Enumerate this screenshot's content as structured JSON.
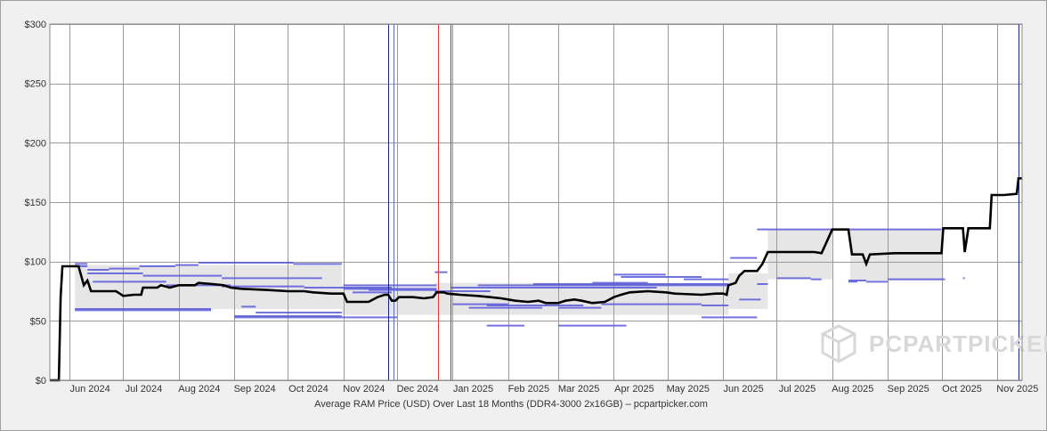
{
  "chart_data": {
    "type": "line",
    "xlabel": "Average RAM Price (USD) Over Last 18 Months (DDR4-3000 2x16GB) – pcpartpicker.com",
    "ylabel": "",
    "ylim": [
      0,
      300
    ],
    "y_ticks": [
      {
        "value": 0,
        "label": "$0"
      },
      {
        "value": 50,
        "label": "$50"
      },
      {
        "value": 100,
        "label": "$100"
      },
      {
        "value": 150,
        "label": "$150"
      },
      {
        "value": 200,
        "label": "$200"
      },
      {
        "value": 250,
        "label": "$250"
      },
      {
        "value": 300,
        "label": "$300"
      }
    ],
    "x_domain": [
      "2024-05-21",
      "2025-11-15"
    ],
    "x_ticks": [
      {
        "date": "2024-06-01",
        "label": "Jun 2024"
      },
      {
        "date": "2024-07-01",
        "label": "Jul 2024"
      },
      {
        "date": "2024-08-01",
        "label": "Aug 2024"
      },
      {
        "date": "2024-09-01",
        "label": "Sep 2024"
      },
      {
        "date": "2024-10-01",
        "label": "Oct 2024"
      },
      {
        "date": "2024-11-01",
        "label": "Nov 2024"
      },
      {
        "date": "2024-12-01",
        "label": "Dec 2024"
      },
      {
        "date": "2025-01-01",
        "label": "Jan 2025"
      },
      {
        "date": "2025-02-01",
        "label": "Feb 2025"
      },
      {
        "date": "2025-03-01",
        "label": "Mar 2025"
      },
      {
        "date": "2025-04-01",
        "label": "Apr 2025"
      },
      {
        "date": "2025-05-01",
        "label": "May 2025"
      },
      {
        "date": "2025-06-01",
        "label": "Jun 2025"
      },
      {
        "date": "2025-07-01",
        "label": "Jul 2025"
      },
      {
        "date": "2025-08-01",
        "label": "Aug 2025"
      },
      {
        "date": "2025-09-01",
        "label": "Sep 2025"
      },
      {
        "date": "2025-10-01",
        "label": "Oct 2025"
      },
      {
        "date": "2025-11-01",
        "label": "Nov 2025"
      }
    ],
    "markers": [
      {
        "date": "2024-11-26",
        "color": "#1a237e"
      },
      {
        "date": "2024-11-29",
        "color": "#5c6bc0"
      },
      {
        "date": "2024-12-24",
        "color": "#e53935"
      },
      {
        "date": "2024-12-31",
        "color": "#555555"
      },
      {
        "date": "2025-11-13",
        "color": "#1a237e"
      }
    ],
    "series": [
      {
        "color": "#000000",
        "points": [
          [
            "2024-05-21",
            0
          ],
          [
            "2024-05-26",
            0
          ],
          [
            "2024-05-27",
            70
          ],
          [
            "2024-05-28",
            96
          ],
          [
            "2024-06-06",
            96
          ],
          [
            "2024-06-09",
            80
          ],
          [
            "2024-06-11",
            84
          ],
          [
            "2024-06-13",
            75
          ],
          [
            "2024-06-17",
            75
          ],
          [
            "2024-06-20",
            75
          ],
          [
            "2024-06-27",
            75
          ],
          [
            "2024-07-01",
            71
          ],
          [
            "2024-07-07",
            72
          ],
          [
            "2024-07-11",
            72
          ],
          [
            "2024-07-12",
            78
          ],
          [
            "2024-07-20",
            78
          ],
          [
            "2024-07-22",
            80
          ],
          [
            "2024-07-27",
            78
          ],
          [
            "2024-08-01",
            80
          ],
          [
            "2024-08-10",
            80
          ],
          [
            "2024-08-12",
            82
          ],
          [
            "2024-08-20",
            81
          ],
          [
            "2024-08-26",
            80
          ],
          [
            "2024-08-30",
            78
          ],
          [
            "2024-09-05",
            77
          ],
          [
            "2024-09-20",
            76
          ],
          [
            "2024-10-01",
            75
          ],
          [
            "2024-10-10",
            75
          ],
          [
            "2024-10-15",
            74
          ],
          [
            "2024-10-25",
            73
          ],
          [
            "2024-11-01",
            73
          ],
          [
            "2024-11-03",
            66
          ],
          [
            "2024-11-15",
            66
          ],
          [
            "2024-11-20",
            70
          ],
          [
            "2024-11-24",
            72
          ],
          [
            "2024-11-26",
            72
          ],
          [
            "2024-11-28",
            67
          ],
          [
            "2024-11-30",
            67
          ],
          [
            "2024-12-02",
            70
          ],
          [
            "2024-12-10",
            70
          ],
          [
            "2024-12-16",
            69
          ],
          [
            "2024-12-21",
            70
          ],
          [
            "2024-12-23",
            74
          ],
          [
            "2024-12-27",
            74
          ],
          [
            "2024-12-29",
            73
          ],
          [
            "2025-01-05",
            72
          ],
          [
            "2025-01-15",
            71
          ],
          [
            "2025-01-22",
            70
          ],
          [
            "2025-01-28",
            69
          ],
          [
            "2025-02-05",
            67
          ],
          [
            "2025-02-12",
            66
          ],
          [
            "2025-02-18",
            67
          ],
          [
            "2025-02-22",
            65
          ],
          [
            "2025-03-01",
            65
          ],
          [
            "2025-03-05",
            67
          ],
          [
            "2025-03-10",
            68
          ],
          [
            "2025-03-14",
            67
          ],
          [
            "2025-03-20",
            65
          ],
          [
            "2025-03-27",
            66
          ],
          [
            "2025-04-01",
            70
          ],
          [
            "2025-04-05",
            72
          ],
          [
            "2025-04-10",
            74
          ],
          [
            "2025-04-20",
            75
          ],
          [
            "2025-04-30",
            74
          ],
          [
            "2025-05-05",
            73
          ],
          [
            "2025-05-20",
            72
          ],
          [
            "2025-05-28",
            73
          ],
          [
            "2025-06-01",
            73
          ],
          [
            "2025-06-03",
            72
          ],
          [
            "2025-06-04",
            80
          ],
          [
            "2025-06-08",
            82
          ],
          [
            "2025-06-10",
            88
          ],
          [
            "2025-06-13",
            92
          ],
          [
            "2025-06-20",
            92
          ],
          [
            "2025-06-23",
            98
          ],
          [
            "2025-06-26",
            108
          ],
          [
            "2025-07-10",
            108
          ],
          [
            "2025-07-22",
            108
          ],
          [
            "2025-07-26",
            107
          ],
          [
            "2025-08-01",
            127
          ],
          [
            "2025-08-10",
            127
          ],
          [
            "2025-08-12",
            106
          ],
          [
            "2025-08-18",
            106
          ],
          [
            "2025-08-20",
            98
          ],
          [
            "2025-08-22",
            106
          ],
          [
            "2025-09-05",
            107
          ],
          [
            "2025-10-01",
            107
          ],
          [
            "2025-10-02",
            128
          ],
          [
            "2025-10-13",
            128
          ],
          [
            "2025-10-14",
            108
          ],
          [
            "2025-10-16",
            128
          ],
          [
            "2025-10-28",
            128
          ],
          [
            "2025-10-29",
            156
          ],
          [
            "2025-11-05",
            156
          ],
          [
            "2025-11-12",
            157
          ],
          [
            "2025-11-13",
            170
          ],
          [
            "2025-11-15",
            170
          ]
        ]
      }
    ],
    "range_band": {
      "color": "#e6e6e6",
      "segments": [
        [
          "2024-06-04",
          "2024-10-31",
          60,
          97
        ],
        [
          "2024-10-31",
          "2024-12-22",
          55,
          80
        ],
        [
          "2024-12-22",
          "2025-06-04",
          55,
          82
        ],
        [
          "2025-06-04",
          "2025-06-26",
          60,
          90
        ],
        [
          "2025-06-26",
          "2025-08-01",
          85,
          127
        ],
        [
          "2025-08-11",
          "2025-10-01",
          84,
          127
        ],
        [
          "2025-10-01",
          "2025-10-02",
          85,
          128
        ]
      ]
    },
    "vendor_color": "#5b5bdb",
    "vendor_segments": [
      [
        "2024-06-04",
        "2024-06-11",
        98
      ],
      [
        "2024-06-04",
        "2024-06-11",
        96
      ],
      [
        "2024-06-11",
        "2024-06-23",
        93
      ],
      [
        "2024-06-23",
        "2024-07-10",
        94
      ],
      [
        "2024-07-10",
        "2024-07-30",
        96
      ],
      [
        "2024-07-30",
        "2024-08-12",
        97
      ],
      [
        "2024-08-12",
        "2024-10-04",
        99
      ],
      [
        "2024-10-04",
        "2024-10-31",
        98
      ],
      [
        "2024-06-11",
        "2024-07-12",
        90
      ],
      [
        "2024-07-12",
        "2024-08-25",
        88
      ],
      [
        "2024-08-25",
        "2024-10-20",
        86
      ],
      [
        "2024-06-14",
        "2024-07-25",
        83
      ],
      [
        "2024-07-25",
        "2024-08-30",
        80
      ],
      [
        "2024-08-25",
        "2024-10-10",
        79
      ],
      [
        "2024-10-10",
        "2024-11-28",
        78
      ],
      [
        "2024-06-04",
        "2024-08-19",
        60
      ],
      [
        "2024-06-04",
        "2024-08-19",
        59
      ],
      [
        "2024-09-05",
        "2024-09-13",
        62
      ],
      [
        "2024-09-13",
        "2024-10-31",
        57
      ],
      [
        "2024-09-01",
        "2024-10-31",
        54
      ],
      [
        "2024-09-01",
        "2024-12-01",
        53
      ],
      [
        "2024-11-01",
        "2024-12-23",
        80
      ],
      [
        "2024-11-01",
        "2024-12-23",
        77
      ],
      [
        "2024-11-15",
        "2024-12-23",
        76
      ],
      [
        "2024-11-06",
        "2024-11-28",
        74
      ],
      [
        "2024-12-22",
        "2024-12-29",
        91
      ],
      [
        "2024-12-22",
        "2025-01-22",
        75
      ],
      [
        "2024-12-31",
        "2025-04-25",
        78
      ],
      [
        "2025-01-15",
        "2025-06-04",
        80
      ],
      [
        "2025-02-15",
        "2025-06-04",
        81
      ],
      [
        "2025-03-20",
        "2025-04-20",
        82
      ],
      [
        "2025-04-01",
        "2025-04-30",
        89
      ],
      [
        "2025-04-05",
        "2025-05-20",
        87
      ],
      [
        "2025-05-10",
        "2025-06-04",
        85
      ],
      [
        "2025-01-01",
        "2025-02-01",
        64
      ],
      [
        "2025-01-10",
        "2025-02-20",
        61
      ],
      [
        "2025-01-20",
        "2025-03-15",
        63
      ],
      [
        "2025-03-01",
        "2025-03-25",
        61
      ],
      [
        "2025-03-25",
        "2025-05-20",
        64
      ],
      [
        "2025-05-20",
        "2025-06-04",
        63
      ],
      [
        "2025-03-01",
        "2025-04-08",
        46
      ],
      [
        "2025-01-20",
        "2025-02-10",
        46
      ],
      [
        "2025-05-20",
        "2025-06-20",
        53
      ],
      [
        "2025-06-05",
        "2025-06-20",
        103
      ],
      [
        "2025-06-20",
        "2025-06-26",
        81
      ],
      [
        "2025-06-10",
        "2025-06-22",
        68
      ],
      [
        "2025-06-20",
        "2025-10-01",
        127
      ],
      [
        "2025-07-01",
        "2025-07-20",
        86
      ],
      [
        "2025-07-20",
        "2025-07-26",
        85
      ],
      [
        "2025-08-10",
        "2025-08-20",
        84
      ],
      [
        "2025-08-10",
        "2025-08-15",
        83
      ],
      [
        "2025-08-20",
        "2025-09-01",
        83
      ],
      [
        "2025-09-01",
        "2025-10-03",
        85
      ],
      [
        "2025-10-13",
        "2025-10-14",
        86
      ]
    ],
    "watermark": "PCPARTPICKER"
  }
}
